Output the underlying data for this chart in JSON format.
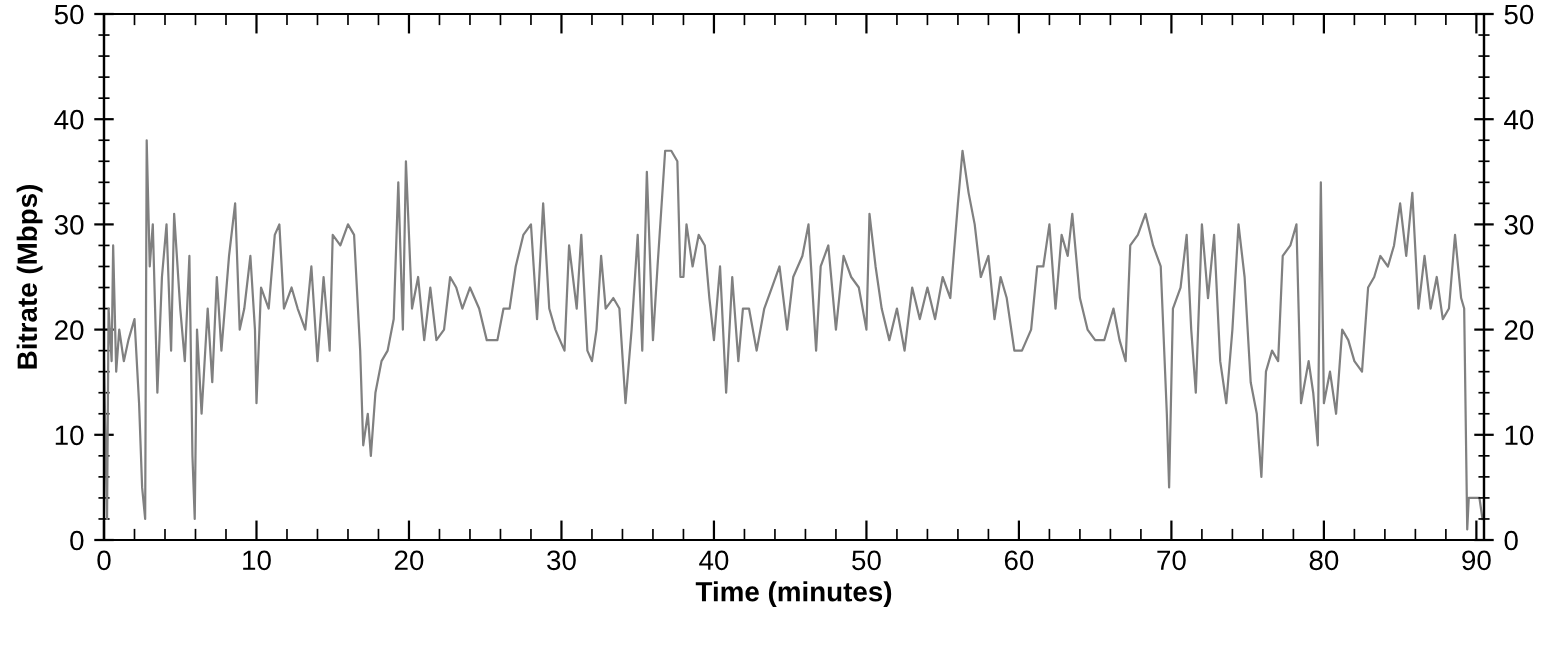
{
  "chart_data": {
    "type": "line",
    "xlabel": "Time (minutes)",
    "ylabel": "Bitrate (Mbps)",
    "xlim": [
      0,
      90.5
    ],
    "xticks": [
      0,
      10,
      20,
      30,
      40,
      50,
      60,
      70,
      80,
      90
    ],
    "ylim": [
      0,
      50
    ],
    "yticks": [
      0,
      10,
      20,
      30,
      40,
      50
    ],
    "y2lim": [
      0,
      50
    ],
    "y2ticks": [
      0,
      10,
      20,
      30,
      40,
      50
    ],
    "grid": false,
    "legend": false,
    "marker": "none",
    "line_style": "solid",
    "series": [
      {
        "color": "#808080",
        "x": [
          0,
          0.2,
          0.3,
          0.5,
          0.6,
          0.8,
          1.0,
          1.3,
          1.6,
          2.0,
          2.3,
          2.5,
          2.7,
          2.8,
          3.0,
          3.2,
          3.5,
          3.8,
          4.1,
          4.4,
          4.6,
          5.0,
          5.3,
          5.6,
          5.8,
          5.95,
          6.1,
          6.4,
          6.8,
          7.1,
          7.4,
          7.7,
          8.2,
          8.6,
          8.9,
          9.2,
          9.6,
          9.9,
          10.0,
          10.3,
          10.8,
          11.2,
          11.5,
          11.8,
          12.3,
          12.7,
          13.2,
          13.6,
          14.0,
          14.4,
          14.8,
          15.0,
          15.5,
          16.0,
          16.4,
          16.8,
          17.0,
          17.3,
          17.5,
          17.8,
          18.2,
          18.6,
          19.0,
          19.3,
          19.6,
          19.8,
          20.2,
          20.6,
          21.0,
          21.4,
          21.8,
          22.3,
          22.7,
          23.1,
          23.5,
          24.0,
          24.6,
          25.1,
          25.8,
          26.2,
          26.6,
          27.0,
          27.5,
          28.0,
          28.4,
          28.8,
          29.2,
          29.6,
          30.2,
          30.5,
          31.0,
          31.3,
          31.7,
          32.0,
          32.3,
          32.6,
          32.9,
          33.4,
          33.8,
          34.2,
          34.6,
          35.0,
          35.3,
          35.6,
          36.0,
          36.3,
          36.8,
          37.2,
          37.6,
          37.8,
          38.0,
          38.2,
          38.6,
          39.0,
          39.4,
          39.7,
          40.0,
          40.4,
          40.8,
          41.2,
          41.6,
          41.9,
          42.3,
          42.8,
          43.3,
          43.8,
          44.3,
          44.8,
          45.2,
          45.8,
          46.2,
          46.7,
          47.0,
          47.5,
          48.0,
          48.5,
          49.0,
          49.5,
          50.0,
          50.2,
          50.6,
          51.0,
          51.5,
          52.0,
          52.5,
          53.0,
          53.5,
          54.0,
          54.5,
          55.0,
          55.5,
          56.0,
          56.3,
          56.7,
          57.1,
          57.5,
          58.0,
          58.4,
          58.8,
          59.2,
          59.7,
          60.2,
          60.8,
          61.2,
          61.6,
          62.0,
          62.4,
          62.8,
          63.2,
          63.5,
          64.0,
          64.5,
          65.0,
          65.6,
          66.2,
          66.6,
          67.0,
          67.3,
          67.8,
          68.3,
          68.8,
          69.3,
          69.7,
          69.85,
          70.1,
          70.6,
          71.0,
          71.3,
          71.6,
          72.0,
          72.4,
          72.8,
          73.2,
          73.6,
          74.0,
          74.4,
          74.8,
          75.2,
          75.6,
          75.9,
          76.2,
          76.6,
          77.0,
          77.3,
          77.8,
          78.2,
          78.5,
          79.0,
          79.3,
          79.6,
          79.8,
          80.0,
          80.4,
          80.8,
          81.2,
          81.6,
          82.0,
          82.5,
          82.9,
          83.3,
          83.7,
          84.2,
          84.6,
          85.0,
          85.4,
          85.8,
          86.2,
          86.6,
          87.0,
          87.4,
          87.8,
          88.2,
          88.6,
          89.0,
          89.2,
          89.4,
          89.5,
          90.2,
          90.4
        ],
        "values": [
          17,
          2,
          22,
          17,
          28,
          16,
          20,
          17,
          19,
          21,
          13,
          5,
          2,
          38,
          26,
          30,
          14,
          25,
          30,
          18,
          31,
          22,
          17,
          27,
          8,
          2,
          20,
          12,
          22,
          15,
          25,
          18,
          27,
          32,
          20,
          22,
          27,
          20,
          13,
          24,
          22,
          29,
          30,
          22,
          24,
          22,
          20,
          26,
          17,
          25,
          18,
          29,
          28,
          30,
          29,
          18,
          9,
          12,
          8,
          14,
          17,
          18,
          21,
          34,
          20,
          36,
          22,
          25,
          19,
          24,
          19,
          20,
          25,
          24,
          22,
          24,
          22,
          19,
          19,
          22,
          22,
          26,
          29,
          30,
          21,
          32,
          22,
          20,
          18,
          28,
          22,
          29,
          18,
          17,
          20,
          27,
          22,
          23,
          22,
          13,
          20,
          29,
          18,
          35,
          19,
          26,
          37,
          37,
          36,
          25,
          25,
          30,
          26,
          29,
          28,
          23,
          19,
          26,
          14,
          25,
          17,
          22,
          22,
          18,
          22,
          24,
          26,
          20,
          25,
          27,
          30,
          18,
          26,
          28,
          20,
          27,
          25,
          24,
          20,
          31,
          26,
          22,
          19,
          22,
          18,
          24,
          21,
          24,
          21,
          25,
          23,
          32,
          37,
          33,
          30,
          25,
          27,
          21,
          25,
          23,
          18,
          18,
          20,
          26,
          26,
          30,
          22,
          29,
          27,
          31,
          23,
          20,
          19,
          19,
          22,
          19,
          17,
          28,
          29,
          31,
          28,
          26,
          12,
          5,
          22,
          24,
          29,
          20,
          14,
          30,
          23,
          29,
          17,
          13,
          20,
          30,
          25,
          15,
          12,
          6,
          16,
          18,
          17,
          27,
          28,
          30,
          13,
          17,
          14,
          9,
          34,
          13,
          16,
          12,
          20,
          19,
          17,
          16,
          24,
          25,
          27,
          26,
          28,
          32,
          27,
          33,
          22,
          27,
          22,
          25,
          21,
          22,
          29,
          23,
          22,
          1,
          4,
          4,
          2
        ]
      }
    ]
  }
}
